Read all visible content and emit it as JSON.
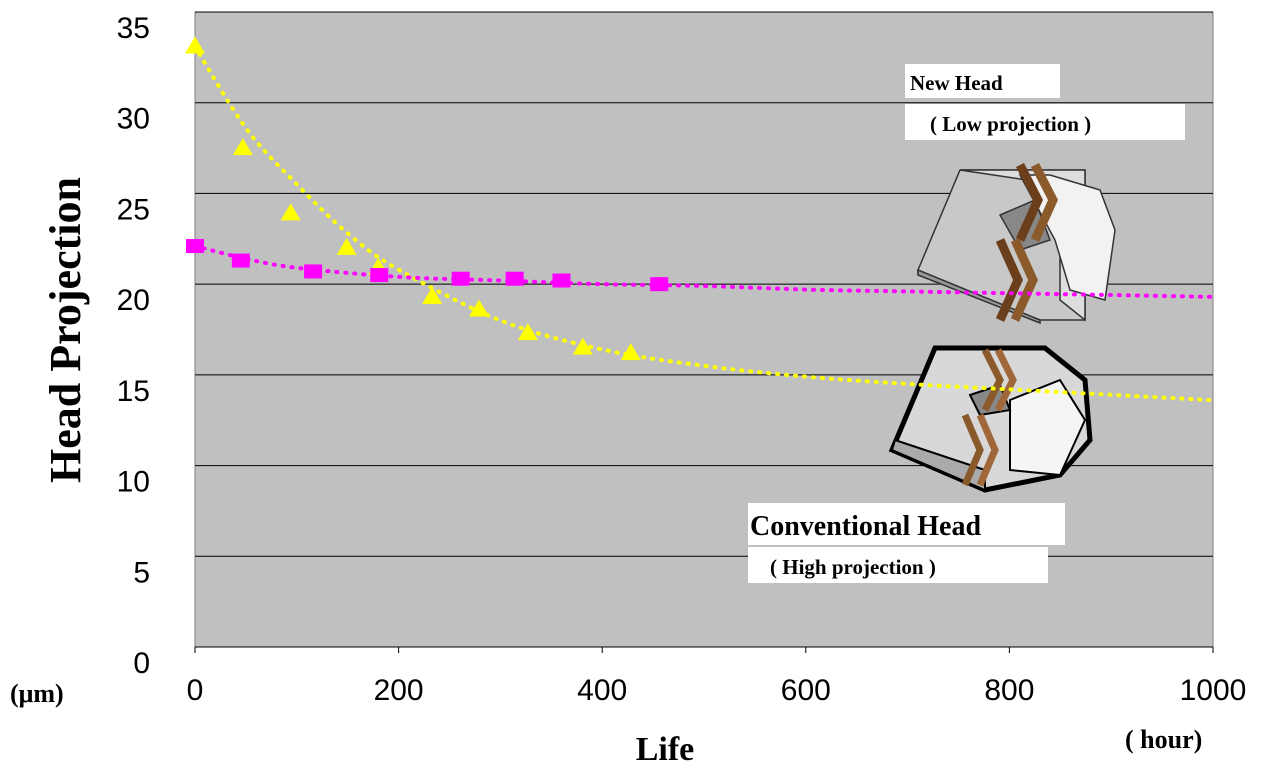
{
  "chart_data": {
    "type": "line",
    "y_label": "Head Projection",
    "x_label": "Life",
    "y_unit": "(μm)",
    "x_unit": "( hour)",
    "annotations": [
      "New Head",
      "( Low projection )",
      "Conventional Head",
      "( High projection )"
    ],
    "xlim": [
      0,
      1000
    ],
    "xticks": [
      0,
      200,
      400,
      600,
      800,
      1000
    ],
    "ylim": [
      0,
      35
    ],
    "yticks": [
      0,
      5,
      10,
      15,
      20,
      25,
      30,
      35
    ],
    "grid": true,
    "series": [
      {
        "color": "#ffff00",
        "marker": "triangle",
        "x": [
          0,
          47,
          94,
          149,
          180,
          233,
          279,
          327,
          381,
          428
        ],
        "values": [
          33.1,
          27.5,
          23.9,
          22.0,
          20.9,
          19.3,
          18.6,
          17.3,
          16.5,
          16.2
        ]
      },
      {
        "color": "#ff00ff",
        "marker": "square",
        "x": [
          0,
          45,
          116,
          181,
          261,
          314,
          360,
          456
        ],
        "values": [
          22.1,
          21.3,
          20.7,
          20.5,
          20.3,
          20.3,
          20.2,
          20.0
        ]
      },
      {
        "color": "#ffff00",
        "marker": "dotted",
        "x": [
          0,
          50,
          100,
          150,
          200,
          300,
          400,
          500,
          600,
          700,
          800,
          900,
          1000
        ],
        "values": [
          33.1,
          28.6,
          25.5,
          22.8,
          20.8,
          18.0,
          16.4,
          15.5,
          14.9,
          14.5,
          14.2,
          13.9,
          13.6
        ]
      },
      {
        "color": "#ff00ff",
        "marker": "dotted",
        "x": [
          0,
          50,
          100,
          200,
          300,
          400,
          500,
          600,
          700,
          800,
          900,
          1000
        ],
        "values": [
          22.1,
          21.4,
          20.9,
          20.4,
          20.2,
          20.0,
          19.9,
          19.7,
          19.6,
          19.5,
          19.4,
          19.3
        ]
      }
    ]
  }
}
